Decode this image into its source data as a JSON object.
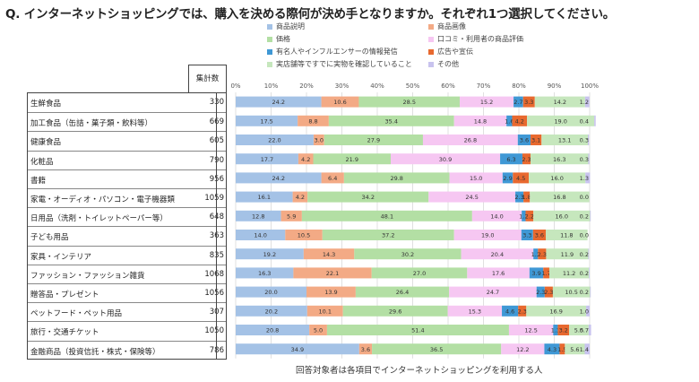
{
  "title": "Q. インターネットショッピングでは、購入を決める際何が決め手となりますか。それぞれ1つ選択してください。",
  "count_header": "集計数",
  "footnote": "回答対象者は各項目でインターネットショッピングを利用する人",
  "colors": [
    "#a4c2e6",
    "#f3aa85",
    "#b3dfa4",
    "#f6c7f2",
    "#3f98d5",
    "#e8692f",
    "#c6e7bd",
    "#c8c3ee"
  ],
  "chart_data": {
    "type": "bar",
    "orientation": "horizontal",
    "stacked": true,
    "xlim": [
      0,
      100
    ],
    "x_ticks": [
      "0%",
      "10%",
      "20%",
      "30%",
      "40%",
      "50%",
      "60%",
      "70%",
      "80%",
      "90%",
      "100%"
    ],
    "legend_position": "top",
    "categories": [
      "生鮮食品",
      "加工食品（缶詰・菓子類・飲料等）",
      "健康食品",
      "化粧品",
      "書籍",
      "家電・オーディオ・パソコン・電子機器類",
      "日用品（洗剤・トイレットペーパー等）",
      "子ども用品",
      "家具・インテリア",
      "ファッション・ファッション雑貨",
      "贈答品・プレゼント",
      "ペットフード・ペット用品",
      "旅行・交通チケット",
      "金融商品（投資信託・株式・保険等）"
    ],
    "counts": [
      330,
      669,
      605,
      790,
      956,
      1059,
      648,
      363,
      835,
      1068,
      1056,
      307,
      1050,
      786
    ],
    "series": [
      {
        "name": "商品説明",
        "values": [
          24.2,
          17.5,
          22.0,
          17.7,
          24.2,
          16.1,
          12.8,
          14.0,
          19.2,
          16.3,
          20.0,
          20.2,
          20.8,
          34.9
        ]
      },
      {
        "name": "商品画像",
        "values": [
          10.6,
          8.8,
          3.0,
          4.2,
          6.4,
          4.2,
          5.9,
          10.5,
          14.3,
          22.1,
          13.9,
          10.1,
          5.0,
          3.6
        ]
      },
      {
        "name": "価格",
        "values": [
          28.5,
          35.4,
          27.9,
          21.9,
          29.8,
          34.2,
          48.1,
          37.2,
          30.2,
          27.0,
          26.4,
          29.6,
          51.4,
          36.5
        ]
      },
      {
        "name": "口コミ・利用者の商品評価",
        "values": [
          15.2,
          14.8,
          26.8,
          30.9,
          15.0,
          24.5,
          14.0,
          19.0,
          20.4,
          17.6,
          24.7,
          15.3,
          12.5,
          12.2
        ]
      },
      {
        "name": "有名人やインフルエンサーの情報発信",
        "values": [
          2.7,
          1.6,
          3.6,
          6.3,
          2.9,
          2.3,
          1.1,
          3.3,
          1.3,
          3.9,
          2.3,
          4.6,
          1.3,
          4.3
        ]
      },
      {
        "name": "広告や宣伝",
        "values": [
          3.3,
          4.2,
          3.1,
          2.3,
          4.5,
          1.8,
          2.2,
          3.6,
          2.3,
          1.7,
          2.3,
          2.3,
          3.2,
          1.5
        ]
      },
      {
        "name": "実店舗等ですでに実物を確認していること",
        "values": [
          14.2,
          19.0,
          13.1,
          16.3,
          16.0,
          16.8,
          16.0,
          11.8,
          11.9,
          11.2,
          10.5,
          16.9,
          5.5,
          5.6
        ]
      },
      {
        "name": "その他",
        "values": [
          1.2,
          0.4,
          0.3,
          0.3,
          1.3,
          0.0,
          0.2,
          0.0,
          0.2,
          0.2,
          0.2,
          1.0,
          0.7,
          1.4
        ]
      }
    ]
  }
}
